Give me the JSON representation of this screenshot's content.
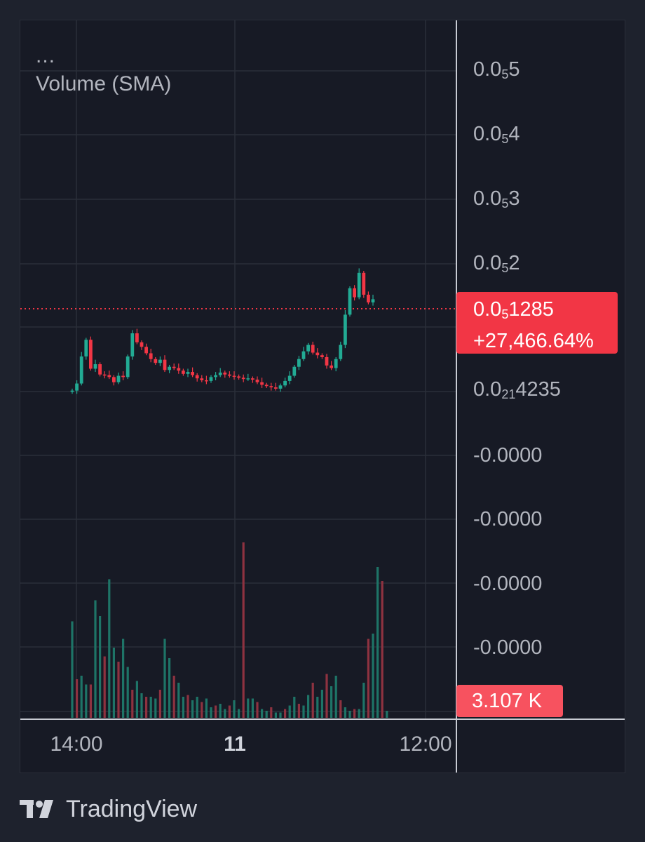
{
  "legend": {
    "dots": "...",
    "indicator": "Volume (SMA)"
  },
  "price_axis": {
    "ticks": [
      {
        "base": "0.0",
        "sub": "5",
        "rest": "5"
      },
      {
        "base": "0.0",
        "sub": "5",
        "rest": "4"
      },
      {
        "base": "0.0",
        "sub": "5",
        "rest": "3"
      },
      {
        "base": "0.0",
        "sub": "5",
        "rest": "2"
      },
      {
        "base": "0.0",
        "sub": "21",
        "rest": "4235"
      },
      {
        "base": "-0.0000",
        "sub": "",
        "rest": ""
      },
      {
        "base": "-0.0000",
        "sub": "",
        "rest": ""
      },
      {
        "base": "-0.0000",
        "sub": "",
        "rest": ""
      },
      {
        "base": "-0.0000",
        "sub": "",
        "rest": ""
      }
    ]
  },
  "last_price": {
    "base": "0.0",
    "sub": "5",
    "rest": "1285",
    "change": "+27,466.64%",
    "color": "#f23645"
  },
  "last_volume": {
    "text": "3.107 K",
    "color": "#f7525f"
  },
  "time_axis": {
    "ticks": [
      "14:00",
      "11",
      "12:00"
    ]
  },
  "brand": {
    "name": "TradingView"
  },
  "colors": {
    "up": "#22ab94",
    "down": "#f23645",
    "vol_up": "#1e7467",
    "vol_down": "#8e3240",
    "grid": "#2a2e39"
  },
  "chart_data": {
    "type": "candlestick",
    "title": "",
    "xlabel": "",
    "ylabel": "",
    "price_unit_note": "prices shown in units of 0.00000X (0.0₅X notation)",
    "y_ticks": [
      "0.0₅5",
      "0.0₅4",
      "0.0₅3",
      "0.0₅2",
      "0.0₂₁4235"
    ],
    "x_ticks": [
      "14:00",
      "11",
      "12:00"
    ],
    "close_trend": [
      0.03,
      0.14,
      0.56,
      0.82,
      0.37,
      0.44,
      0.28,
      0.27,
      0.24,
      0.16,
      0.26,
      0.24,
      0.56,
      0.92,
      0.78,
      0.71,
      0.61,
      0.52,
      0.46,
      0.51,
      0.35,
      0.4,
      0.38,
      0.34,
      0.29,
      0.32,
      0.27,
      0.22,
      0.19,
      0.18,
      0.24,
      0.27,
      0.31,
      0.28,
      0.26,
      0.25,
      0.23,
      0.21,
      0.22,
      0.2,
      0.16,
      0.12,
      0.1,
      0.08,
      0.06,
      0.11,
      0.18,
      0.26,
      0.4,
      0.52,
      0.64,
      0.74,
      0.62,
      0.58,
      0.55,
      0.42,
      0.38,
      0.52,
      0.74,
      1.21,
      1.62,
      1.48,
      1.86,
      1.52,
      1.4,
      1.45
    ],
    "volume_trend": [
      0.55,
      0.22,
      0.24,
      0.19,
      0.19,
      0.67,
      0.58,
      0.35,
      0.79,
      0.4,
      0.32,
      0.45,
      0.29,
      0.16,
      0.21,
      0.14,
      0.12,
      0.12,
      0.11,
      0.16,
      0.45,
      0.34,
      0.24,
      0.2,
      0.12,
      0.13,
      0.1,
      0.12,
      0.09,
      0.11,
      0.06,
      0.07,
      0.08,
      0.05,
      0.07,
      0.1,
      0.05,
      1.0,
      0.11,
      0.11,
      0.09,
      0.05,
      0.04,
      0.06,
      0.03,
      0.03,
      0.05,
      0.07,
      0.12,
      0.08,
      0.07,
      0.13,
      0.2,
      0.12,
      0.16,
      0.25,
      0.18,
      0.24,
      0.1,
      0.06,
      0.04,
      0.05,
      0.05,
      0.2,
      0.45,
      0.48,
      0.86,
      0.78,
      0.04
    ]
  }
}
